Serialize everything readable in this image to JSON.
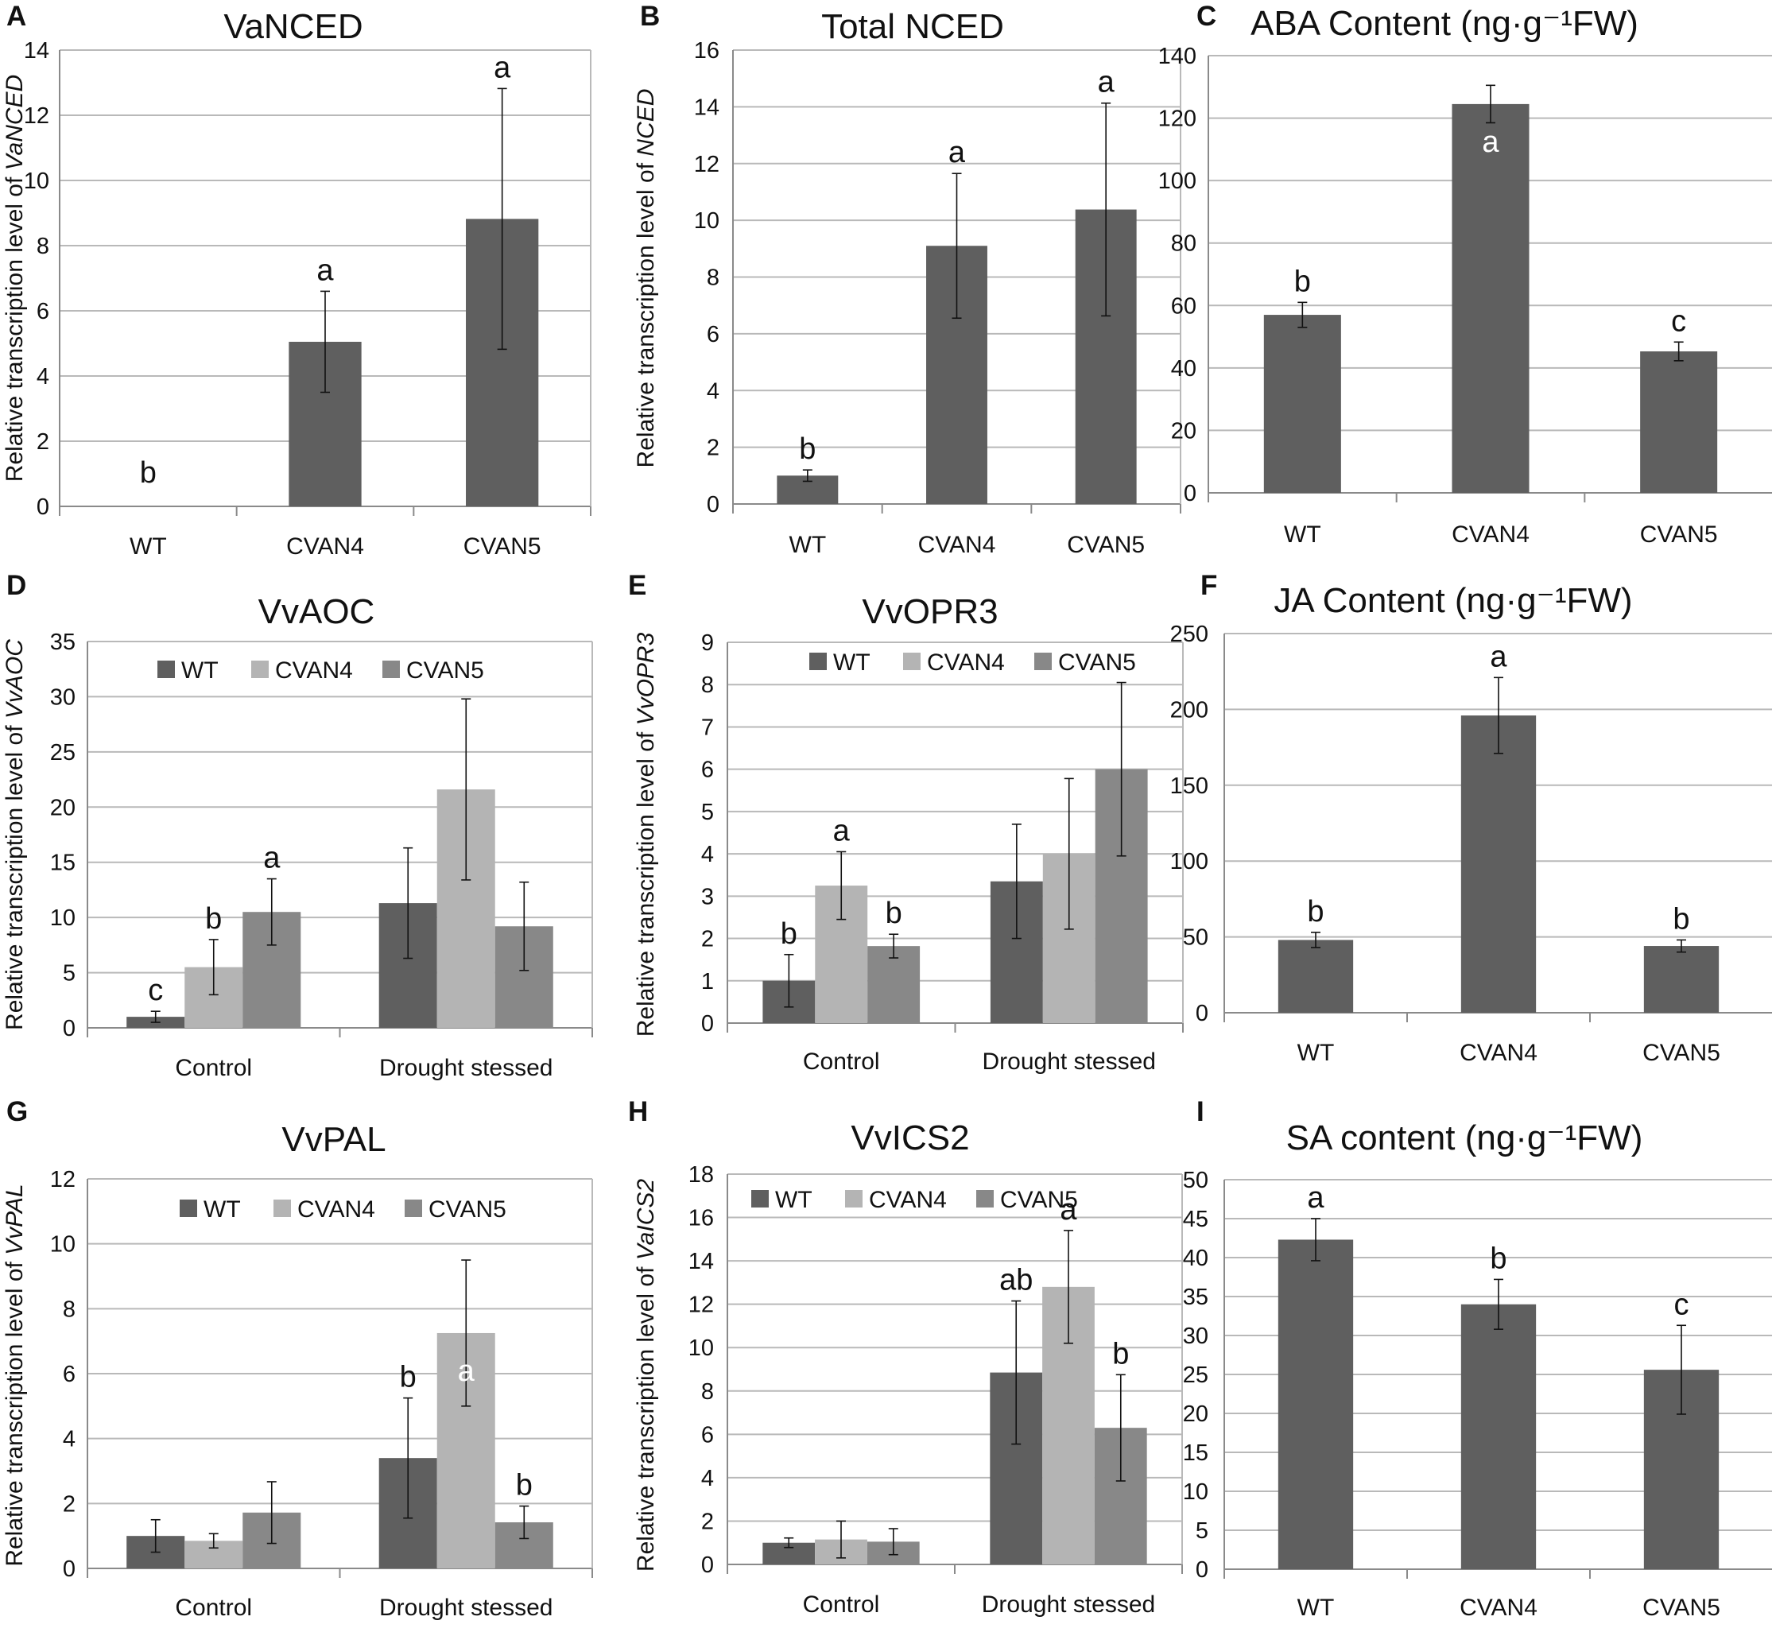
{
  "colors": {
    "wt": "#5f5f5f",
    "cvan4": "#b4b4b4",
    "cvan5": "#888888",
    "grid": "#b9b9b9",
    "axis": "#8a8a8a"
  },
  "chart_data": [
    {
      "panel": "A",
      "type": "bar",
      "title": "VaNCED",
      "ylabel": "Relative transcription level of ",
      "ylabel_italic": "VaNCED",
      "categories": [
        "WT",
        "CVAN4",
        "CVAN5"
      ],
      "ylim": [
        0,
        14
      ],
      "ystep": 2,
      "values": [
        0,
        5.05,
        8.82
      ],
      "errors": [
        0,
        1.55,
        4.0
      ],
      "letters": [
        "b",
        "a",
        "a"
      ]
    },
    {
      "panel": "B",
      "type": "bar",
      "title": "Total NCED",
      "ylabel": "Relative transcription level of ",
      "ylabel_italic": "NCED",
      "categories": [
        "WT",
        "CVAN4",
        "CVAN5"
      ],
      "ylim": [
        0,
        16
      ],
      "ystep": 2,
      "values": [
        1.0,
        9.1,
        10.38
      ],
      "errors": [
        0.2,
        2.55,
        3.75
      ],
      "letters": [
        "b",
        "a",
        "a"
      ]
    },
    {
      "panel": "C",
      "type": "bar",
      "title": "ABA Content (ng·g⁻¹FW)",
      "ylabel": "",
      "ylabel_italic": "",
      "categories": [
        "WT",
        "CVAN4",
        "CVAN5"
      ],
      "ylim": [
        0,
        140
      ],
      "ystep": 20,
      "values": [
        57,
        124.5,
        45.3
      ],
      "errors": [
        4,
        6,
        3
      ],
      "letters": [
        "b",
        "a",
        "c"
      ],
      "letter_inside": [
        false,
        true,
        false
      ]
    },
    {
      "panel": "D",
      "type": "bar",
      "title": "VvAOC",
      "ylabel": "Relative transcription level of ",
      "ylabel_italic": "VvAOC",
      "categories": [
        "Control",
        "Drought stessed"
      ],
      "ylim": [
        0,
        35
      ],
      "ystep": 5,
      "legend": [
        "WT",
        "CVAN4",
        "CVAN5"
      ],
      "series": [
        {
          "name": "WT",
          "values": [
            1.0,
            11.3
          ],
          "errors": [
            0.5,
            5.0
          ]
        },
        {
          "name": "CVAN4",
          "values": [
            5.5,
            21.6
          ],
          "errors": [
            2.5,
            8.2
          ]
        },
        {
          "name": "CVAN5",
          "values": [
            10.5,
            9.2
          ],
          "errors": [
            3.0,
            4.0
          ]
        }
      ],
      "letters": [
        [
          "c",
          "b",
          "a"
        ],
        [
          "",
          "",
          ""
        ]
      ]
    },
    {
      "panel": "E",
      "type": "bar",
      "title": "VvOPR3",
      "ylabel": "Relative transcription level of ",
      "ylabel_italic": "VvOPR3",
      "categories": [
        "Control",
        "Drought stessed"
      ],
      "ylim": [
        0,
        9
      ],
      "ystep": 1,
      "legend": [
        "WT",
        "CVAN4",
        "CVAN5"
      ],
      "series": [
        {
          "name": "WT",
          "values": [
            1.0,
            3.35
          ],
          "errors": [
            0.62,
            1.35
          ]
        },
        {
          "name": "CVAN4",
          "values": [
            3.25,
            4.0
          ],
          "errors": [
            0.8,
            1.78
          ]
        },
        {
          "name": "CVAN5",
          "values": [
            1.82,
            6.0
          ],
          "errors": [
            0.28,
            2.05
          ]
        }
      ],
      "letters": [
        [
          "b",
          "a",
          "b"
        ],
        [
          "",
          "",
          ""
        ]
      ]
    },
    {
      "panel": "F",
      "type": "bar",
      "title": "JA Content (ng·g⁻¹FW)",
      "ylabel": "",
      "ylabel_italic": "",
      "categories": [
        "WT",
        "CVAN4",
        "CVAN5"
      ],
      "ylim": [
        0,
        250
      ],
      "ystep": 50,
      "values": [
        48,
        196,
        44
      ],
      "errors": [
        5,
        25,
        4
      ],
      "letters": [
        "b",
        "a",
        "b"
      ]
    },
    {
      "panel": "G",
      "type": "bar",
      "title": "VvPAL",
      "ylabel": "Relative transcription level of ",
      "ylabel_italic": "VvPAL",
      "categories": [
        "Control",
        "Drought stessed"
      ],
      "ylim": [
        0,
        12
      ],
      "ystep": 2,
      "legend": [
        "WT",
        "CVAN4",
        "CVAN5"
      ],
      "series": [
        {
          "name": "WT",
          "values": [
            1.0,
            3.4
          ],
          "errors": [
            0.5,
            1.85
          ]
        },
        {
          "name": "CVAN4",
          "values": [
            0.85,
            7.25
          ],
          "errors": [
            0.22,
            2.25
          ]
        },
        {
          "name": "CVAN5",
          "values": [
            1.72,
            1.42
          ],
          "errors": [
            0.95,
            0.5
          ]
        }
      ],
      "letters": [
        [
          "",
          "",
          ""
        ],
        [
          "b",
          "a",
          "b"
        ]
      ],
      "letter_inside": [
        [
          false,
          false,
          false
        ],
        [
          false,
          true,
          false
        ]
      ]
    },
    {
      "panel": "H",
      "type": "bar",
      "title": "VvICS2",
      "ylabel": "Relative transcription level of ",
      "ylabel_italic": "VaICS2",
      "categories": [
        "Control",
        "Drought stessed"
      ],
      "ylim": [
        0,
        18
      ],
      "ystep": 2,
      "legend": [
        "WT",
        "CVAN4",
        "CVAN5"
      ],
      "series": [
        {
          "name": "WT",
          "values": [
            1.0,
            8.85
          ],
          "errors": [
            0.22,
            3.3
          ]
        },
        {
          "name": "CVAN4",
          "values": [
            1.15,
            12.8
          ],
          "errors": [
            0.85,
            2.6
          ]
        },
        {
          "name": "CVAN5",
          "values": [
            1.05,
            6.3
          ],
          "errors": [
            0.6,
            2.45
          ]
        }
      ],
      "letters": [
        [
          "",
          "",
          ""
        ],
        [
          "ab",
          "a",
          "b"
        ]
      ]
    },
    {
      "panel": "I",
      "type": "bar",
      "title": "SA content (ng·g⁻¹FW)",
      "ylabel": "",
      "ylabel_italic": "",
      "categories": [
        "WT",
        "CVAN4",
        "CVAN5"
      ],
      "ylim": [
        0,
        50
      ],
      "ystep": 5,
      "values": [
        42.3,
        34.0,
        25.6
      ],
      "errors": [
        2.7,
        3.2,
        5.7
      ],
      "letters": [
        "a",
        "b",
        "c"
      ]
    }
  ]
}
